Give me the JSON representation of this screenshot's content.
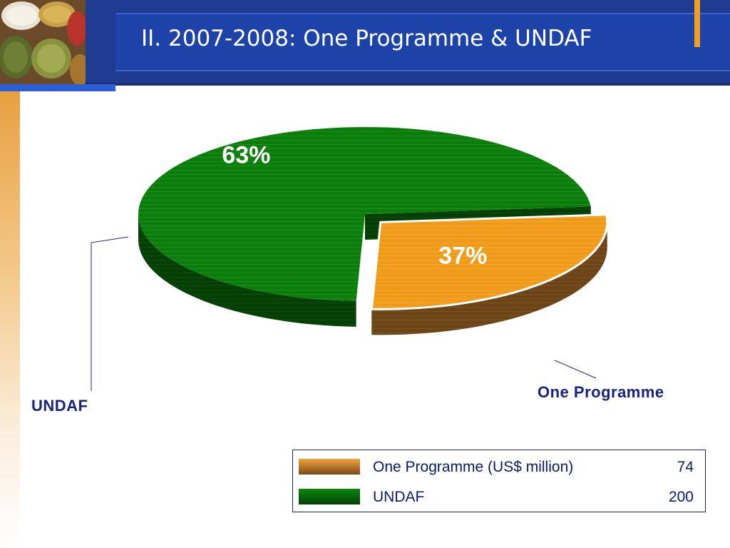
{
  "slide": {
    "title": "II. 2007-2008: One Programme & UNDAF"
  },
  "chart_data": {
    "type": "pie",
    "categories": [
      "One Programme",
      "UNDAF"
    ],
    "values": [
      74,
      200
    ],
    "percent_labels": [
      "37%",
      "63%"
    ],
    "colors": [
      "#f0a020",
      "#0a7a0a"
    ],
    "three_d": true,
    "exploded_slice": "One Programme",
    "callouts": [
      "One Programme",
      "UNDAF"
    ],
    "legend": {
      "position": "bottom-right",
      "rows": [
        {
          "label": "One Programme (US$ million)",
          "value": "74"
        },
        {
          "label": "UNDAF",
          "value": "200"
        }
      ]
    }
  }
}
